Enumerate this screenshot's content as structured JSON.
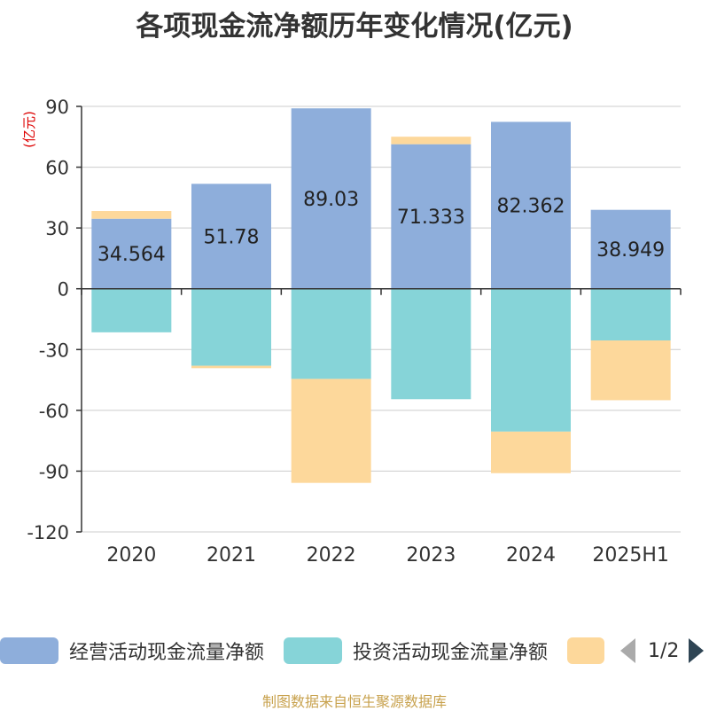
{
  "title": "各项现金流净额历年变化情况(亿元)",
  "source_text": "制图数据来自恒生聚源数据库",
  "legend_pager": {
    "text": "1/2"
  },
  "colors": {
    "operating": "#8eaedb",
    "investing": "#86d4d8",
    "financing": "#fdd89b"
  },
  "chart_data": {
    "type": "bar",
    "stacked": true,
    "title": "各项现金流净额历年变化情况(亿元)",
    "ylabel": "(亿元)",
    "xlabel": "",
    "ylim": [
      -120,
      90
    ],
    "yticks": [
      90,
      60,
      30,
      0,
      -30,
      -60,
      -90,
      -120
    ],
    "ytick_labels": [
      "90",
      "60",
      "30",
      "0",
      "-30",
      "-60",
      "-90",
      "-120"
    ],
    "categories": [
      "2020",
      "2021",
      "2022",
      "2023",
      "2024",
      "2025H1"
    ],
    "grid": true,
    "legend_position": "bottom",
    "series": [
      {
        "name": "经营活动现金流量净额",
        "color": "#8eaedb",
        "values": [
          34.564,
          51.78,
          89.03,
          71.333,
          82.362,
          38.949
        ],
        "labels": [
          "34.564",
          "51.78",
          "89.03",
          "71.333",
          "82.362",
          "38.949"
        ]
      },
      {
        "name": "投资活动现金流量净额",
        "color": "#86d4d8",
        "values": [
          -21.5,
          -38.0,
          -44.5,
          -54.5,
          -70.5,
          -25.5
        ]
      },
      {
        "name": "",
        "color": "#fdd89b",
        "values": [
          3.8,
          -1.2,
          -51.3,
          3.7,
          -20.5,
          -29.5
        ]
      }
    ]
  }
}
